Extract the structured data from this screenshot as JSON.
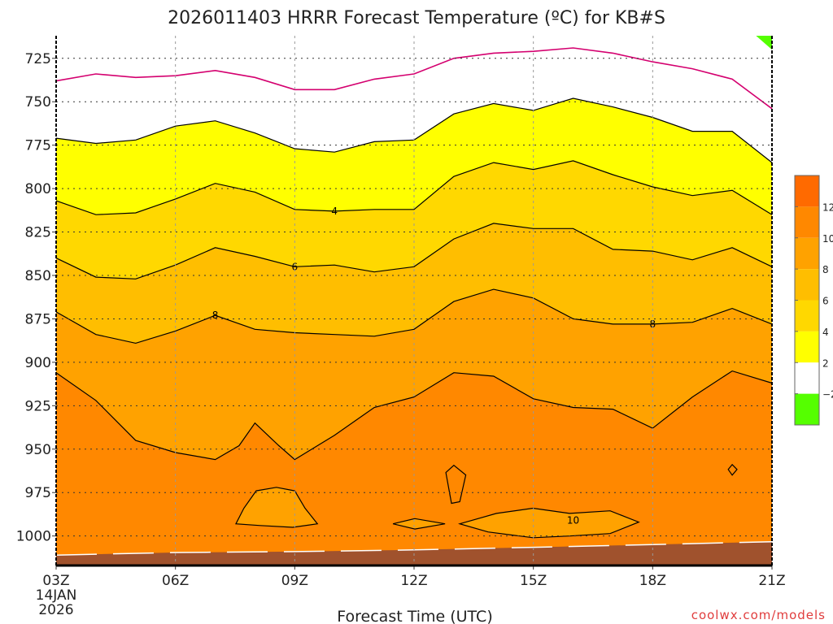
{
  "chart_data": {
    "type": "heatmap",
    "title": "2026011403 HRRR Forecast Temperature (ºC) for KB#S",
    "xlabel": "Forecast Time (UTC)",
    "ylabel": "",
    "watermark": "coolwx.com/models",
    "xlim_hours": [
      0,
      18
    ],
    "ylim_hPa": [
      1017,
      712
    ],
    "x_ticks": [
      {
        "hour": 0,
        "label": "03Z",
        "sub1": "14JAN",
        "sub2": "2026"
      },
      {
        "hour": 3,
        "label": "06Z"
      },
      {
        "hour": 6,
        "label": "09Z"
      },
      {
        "hour": 9,
        "label": "12Z"
      },
      {
        "hour": 12,
        "label": "15Z"
      },
      {
        "hour": 15,
        "label": "18Z"
      },
      {
        "hour": 18,
        "label": "21Z"
      }
    ],
    "y_ticks": [
      {
        "p": 725,
        "label": "725"
      },
      {
        "p": 750,
        "label": "750"
      },
      {
        "p": 775,
        "label": "775"
      },
      {
        "p": 800,
        "label": "800"
      },
      {
        "p": 825,
        "label": "825"
      },
      {
        "p": 850,
        "label": "850"
      },
      {
        "p": 875,
        "label": "875"
      },
      {
        "p": 900,
        "label": "900"
      },
      {
        "p": 925,
        "label": "925"
      },
      {
        "p": 950,
        "label": "950"
      },
      {
        "p": 975,
        "label": "975"
      },
      {
        "p": 1000,
        "label": "1000"
      }
    ],
    "hours": [
      0,
      1,
      2,
      3,
      4,
      5,
      6,
      7,
      8,
      9,
      10,
      11,
      12,
      13,
      14,
      15,
      16,
      17,
      18
    ],
    "isotherms": [
      {
        "temp": 0,
        "pressures": [
          738,
          734,
          736,
          735,
          732,
          736,
          743,
          743,
          737,
          734,
          725,
          722,
          721,
          719,
          722,
          727,
          731,
          737,
          754
        ]
      },
      {
        "temp": 2,
        "pressures": [
          771,
          774,
          772,
          764,
          761,
          768,
          777,
          779,
          773,
          772,
          757,
          751,
          755,
          748,
          753,
          759,
          767,
          767,
          785
        ]
      },
      {
        "temp": 4,
        "pressures": [
          807,
          815,
          814,
          806,
          797,
          802,
          812,
          813,
          812,
          812,
          793,
          785,
          789,
          784,
          792,
          799,
          804,
          801,
          815
        ]
      },
      {
        "temp": 6,
        "pressures": [
          840,
          851,
          852,
          844,
          834,
          839,
          845,
          844,
          848,
          845,
          829,
          820,
          823,
          823,
          835,
          836,
          841,
          834,
          845
        ]
      },
      {
        "temp": 8,
        "pressures": [
          871,
          884,
          889,
          882,
          873,
          881,
          883,
          884,
          885,
          881,
          865,
          858,
          863,
          875,
          878,
          878,
          877,
          869,
          878
        ]
      }
    ],
    "isotherm_10": [
      [
        0,
        906
      ],
      [
        1,
        922
      ],
      [
        2,
        945
      ],
      [
        3,
        952
      ],
      [
        4,
        956
      ],
      [
        4.6,
        948
      ],
      [
        5,
        935
      ],
      [
        5.6,
        948
      ],
      [
        6,
        956
      ],
      [
        7,
        942
      ],
      [
        8,
        926
      ],
      [
        9,
        920
      ],
      [
        10,
        906
      ],
      [
        11,
        908
      ],
      [
        12,
        921
      ],
      [
        13,
        926
      ],
      [
        14,
        927
      ],
      [
        15,
        938
      ],
      [
        16,
        920
      ],
      [
        17,
        905
      ],
      [
        18,
        912
      ]
    ],
    "cool_pockets_8_10": [
      [
        [
          4.52,
          993
        ],
        [
          4.72,
          984
        ],
        [
          5.03,
          974
        ],
        [
          5.54,
          972
        ],
        [
          6,
          974
        ],
        [
          6.26,
          984
        ],
        [
          6.57,
          993
        ],
        [
          5.95,
          995
        ],
        [
          5.13,
          994
        ]
      ],
      [
        [
          8.47,
          993
        ],
        [
          9.02,
          990
        ],
        [
          9.78,
          993
        ],
        [
          9.02,
          996
        ]
      ],
      [
        [
          10.15,
          993
        ],
        [
          11.07,
          987
        ],
        [
          11.99,
          984
        ],
        [
          12.91,
          987
        ],
        [
          13.93,
          985.5
        ],
        [
          14.65,
          992
        ],
        [
          13.93,
          998.6
        ],
        [
          12.91,
          1000
        ],
        [
          11.99,
          1001
        ],
        [
          10.86,
          997.7
        ]
      ]
    ],
    "warm_pockets_12": [
      [
        [
          9.8,
          963.5
        ],
        [
          10,
          959.3
        ],
        [
          10.3,
          964.9
        ],
        [
          10.15,
          980.3
        ],
        [
          9.94,
          981.2
        ]
      ],
      [
        [
          17,
          958.9
        ],
        [
          17.12,
          961.7
        ],
        [
          17,
          965
        ],
        [
          16.9,
          961.7
        ]
      ]
    ],
    "below_minus2_region": [
      [
        17.6,
        712
      ],
      [
        18,
        712
      ],
      [
        18,
        720
      ]
    ],
    "terrain_surface": [
      [
        0,
        1011
      ],
      [
        1,
        1010.5
      ],
      [
        3,
        1009.5
      ],
      [
        6,
        1009
      ],
      [
        9,
        1008
      ],
      [
        12,
        1006.5
      ],
      [
        15,
        1005
      ],
      [
        18,
        1003.3
      ]
    ],
    "contour_labels": [
      {
        "text": "4",
        "hour": 7,
        "p": 813,
        "temp": 4
      },
      {
        "text": "6",
        "hour": 6,
        "p": 845,
        "temp": 6
      },
      {
        "text": "8",
        "hour": 4,
        "p": 873,
        "temp": 8
      },
      {
        "text": "8",
        "hour": 15,
        "p": 878,
        "temp": 8
      },
      {
        "text": "10",
        "hour": 13,
        "p": 991,
        "temp": 10
      }
    ],
    "colorbar": {
      "levels": [
        {
          "range": "12 to 14",
          "color": "#ff6a00"
        },
        {
          "range": "10 to 12",
          "color": "#ff8800"
        },
        {
          "range": "8 to 10",
          "color": "#ffa200"
        },
        {
          "range": "6 to 8",
          "color": "#ffbe00"
        },
        {
          "range": "4 to 6",
          "color": "#ffd800"
        },
        {
          "range": "2 to 4",
          "color": "#ffff00"
        },
        {
          "range": "-2 to 2",
          "color": "#ffffff"
        },
        {
          "range": "below -2",
          "color": "#55ff00"
        }
      ],
      "labels": [
        "12",
        "10",
        "8",
        "6",
        "4",
        "2",
        "−2"
      ]
    },
    "colors": {
      "band_10_12": "#ff8800",
      "band_8_10": "#ffa200",
      "band_6_8": "#ffbe00",
      "band_4_6": "#ffd800",
      "band_2_4": "#ffff00",
      "band_m2_2": "#ffffff",
      "band_below_m2": "#55ff00",
      "zero_line": "#d4006f",
      "terrain": "#a0522d",
      "watermark": "#e03c3c"
    }
  }
}
